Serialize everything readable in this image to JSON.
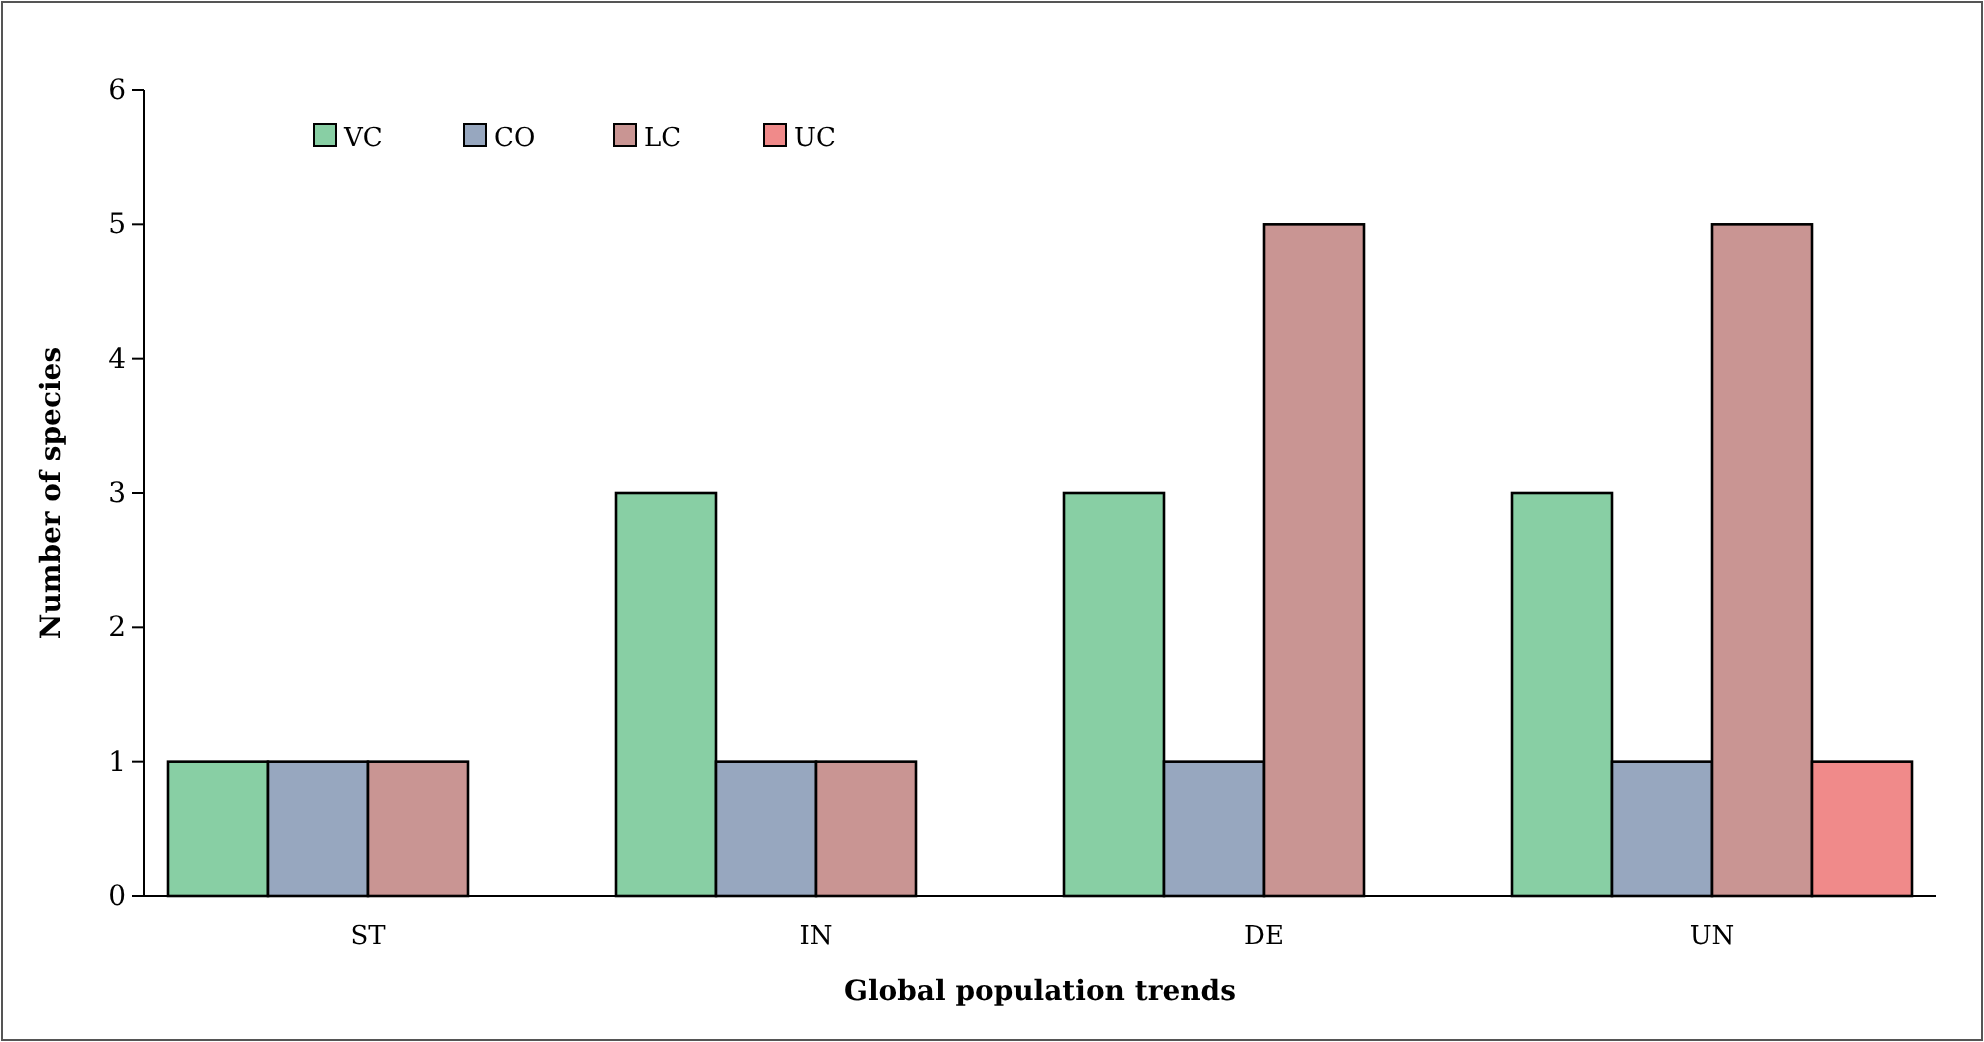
{
  "chart_data": {
    "type": "bar",
    "xlabel": "Global population trends",
    "ylabel": "Number of species",
    "categories": [
      "ST",
      "IN",
      "DE",
      "UN"
    ],
    "series": [
      {
        "name": "VC",
        "color": "#88cfa4",
        "values": [
          1,
          3,
          3,
          3
        ]
      },
      {
        "name": "CO",
        "color": "#97a7bf",
        "values": [
          1,
          1,
          1,
          1
        ]
      },
      {
        "name": "LC",
        "color": "#c99593",
        "values": [
          1,
          1,
          5,
          5
        ]
      },
      {
        "name": "UC",
        "color": "#f08a8a",
        "values": [
          null,
          null,
          null,
          1
        ]
      }
    ],
    "ylim": [
      0,
      6
    ],
    "yticks": [
      0,
      1,
      2,
      3,
      4,
      5,
      6
    ],
    "grid": false,
    "legend": "top left"
  }
}
